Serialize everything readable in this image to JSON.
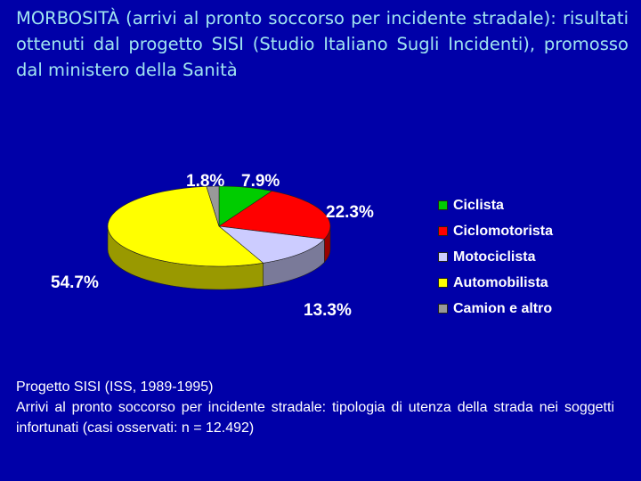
{
  "slide": {
    "title": "MORBOSITÀ (arrivi al pronto soccorso per incidente stradale): risultati ottenuti dal progetto SISI (Studio Italiano Sugli Incidenti), promosso dal ministero della Sanità"
  },
  "caption": {
    "line1": "Progetto SISI (ISS, 1989-1995)",
    "line2": "Arrivi al pronto soccorso per incidente stradale: tipologia di utenza della strada nei soggetti infortunati (casi osservati: n = 12.492)"
  },
  "chart_data": {
    "type": "pie",
    "title": "",
    "legend_position": "right",
    "slices": [
      {
        "name": "Ciclista",
        "value": 7.9,
        "label": "7.9%",
        "color": "#00cc00"
      },
      {
        "name": "Ciclomotorista",
        "value": 22.3,
        "label": "22.3%",
        "color": "#ff0000"
      },
      {
        "name": "Motociclista",
        "value": 13.3,
        "label": "13.3%",
        "color": "#ccccff"
      },
      {
        "name": "Automobilista",
        "value": 54.7,
        "label": "54.7%",
        "color": "#ffff00"
      },
      {
        "name": "Camion e altro",
        "value": 1.8,
        "label": "1.8%",
        "color": "#999999"
      }
    ]
  }
}
